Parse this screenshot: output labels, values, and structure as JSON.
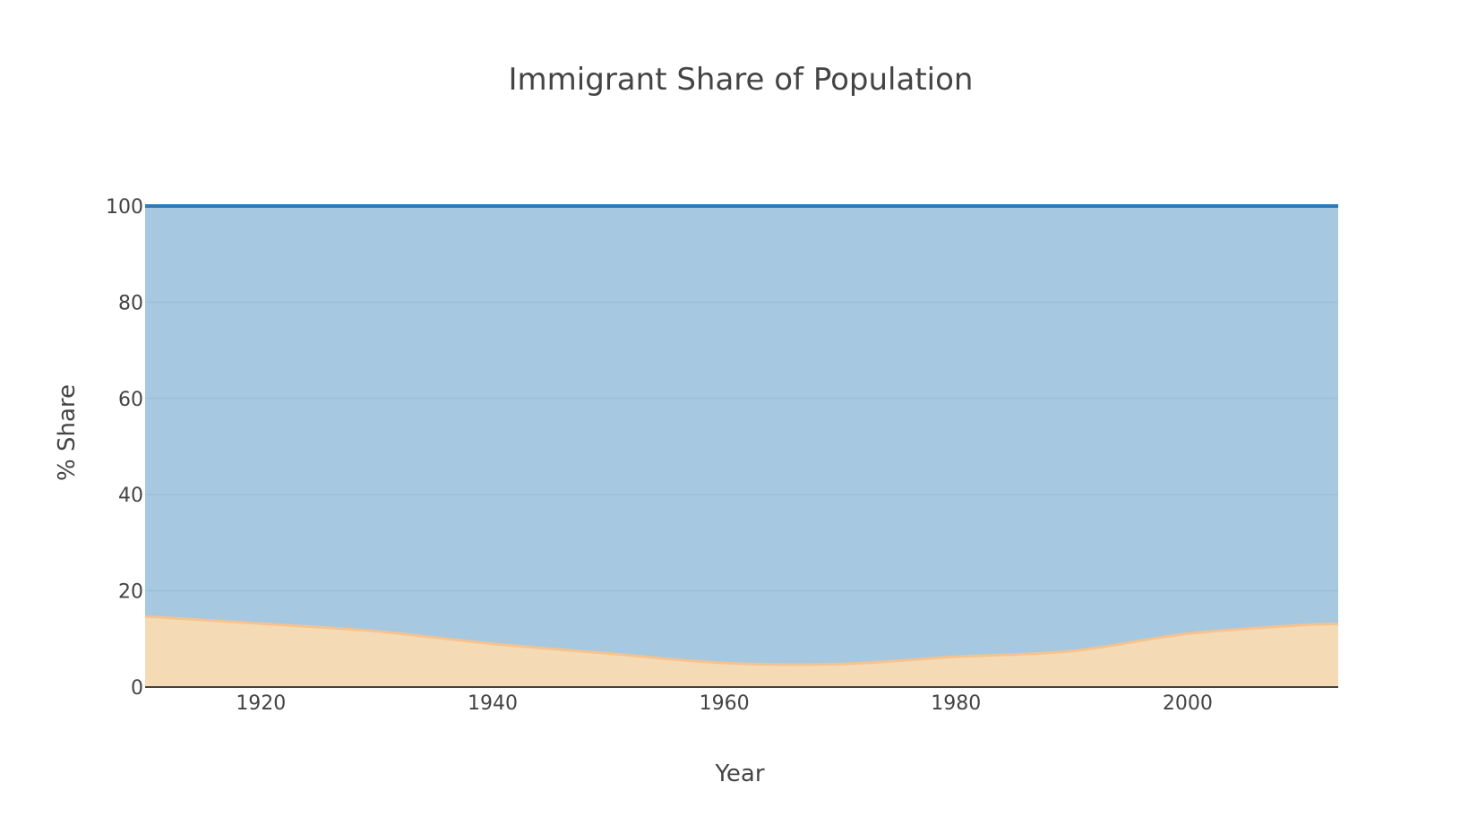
{
  "chart_data": {
    "type": "area",
    "title": "Immigrant Share of Population",
    "xlabel": "Year",
    "ylabel": "% Share",
    "xlim": [
      1910,
      2013
    ],
    "ylim": [
      0,
      100
    ],
    "x_ticks": [
      1920,
      1940,
      1960,
      1980,
      2000
    ],
    "y_ticks": [
      0,
      20,
      40,
      60,
      80,
      100
    ],
    "stacked": true,
    "grid": true,
    "legend": "none",
    "x": [
      1910,
      1920,
      1930,
      1940,
      1950,
      1960,
      1970,
      1980,
      1990,
      2000,
      2010,
      2013
    ],
    "series": [
      {
        "values": [
          14.7,
          13.2,
          11.6,
          9.0,
          7.0,
          5.0,
          4.8,
          6.3,
          7.5,
          11.1,
          12.9,
          13.1
        ],
        "color": "#f5c38f",
        "fill": "#f5dab6"
      },
      {
        "values": [
          85.3,
          86.8,
          88.4,
          91.0,
          93.0,
          95.0,
          95.2,
          93.7,
          92.5,
          88.9,
          87.1,
          86.9
        ],
        "color": "#2b7bba",
        "fill": "#a6c8e1"
      }
    ]
  }
}
